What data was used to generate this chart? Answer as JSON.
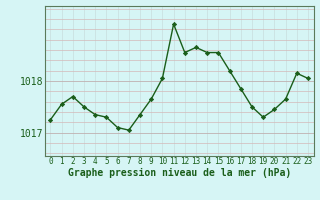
{
  "x": [
    0,
    1,
    2,
    3,
    4,
    5,
    6,
    7,
    8,
    9,
    10,
    11,
    12,
    13,
    14,
    15,
    16,
    17,
    18,
    19,
    20,
    21,
    22,
    23
  ],
  "y": [
    1017.25,
    1017.55,
    1017.7,
    1017.5,
    1017.35,
    1017.3,
    1017.1,
    1017.05,
    1017.35,
    1017.65,
    1018.05,
    1019.1,
    1018.55,
    1018.65,
    1018.55,
    1018.55,
    1018.2,
    1017.85,
    1017.5,
    1017.3,
    1017.45,
    1017.65,
    1018.15,
    1018.05
  ],
  "line_color": "#1a5e1a",
  "marker": "D",
  "marker_size": 2.2,
  "marker_color": "#1a5e1a",
  "bg_color": "#d6f5f5",
  "grid_color_major": "#c0c0c0",
  "grid_color_minor": "#c8e8e8",
  "xlabel": "Graphe pression niveau de la mer (hPa)",
  "xlabel_color": "#1a5e1a",
  "xlabel_fontsize": 7,
  "tick_color": "#1a5e1a",
  "tick_fontsize": 5.5,
  "ytick_fontsize": 7,
  "ylim": [
    1016.55,
    1019.45
  ],
  "yticks": [
    1017,
    1018
  ],
  "xlim": [
    -0.5,
    23.5
  ],
  "spine_color": "#5a7a5a",
  "linewidth": 1.0
}
